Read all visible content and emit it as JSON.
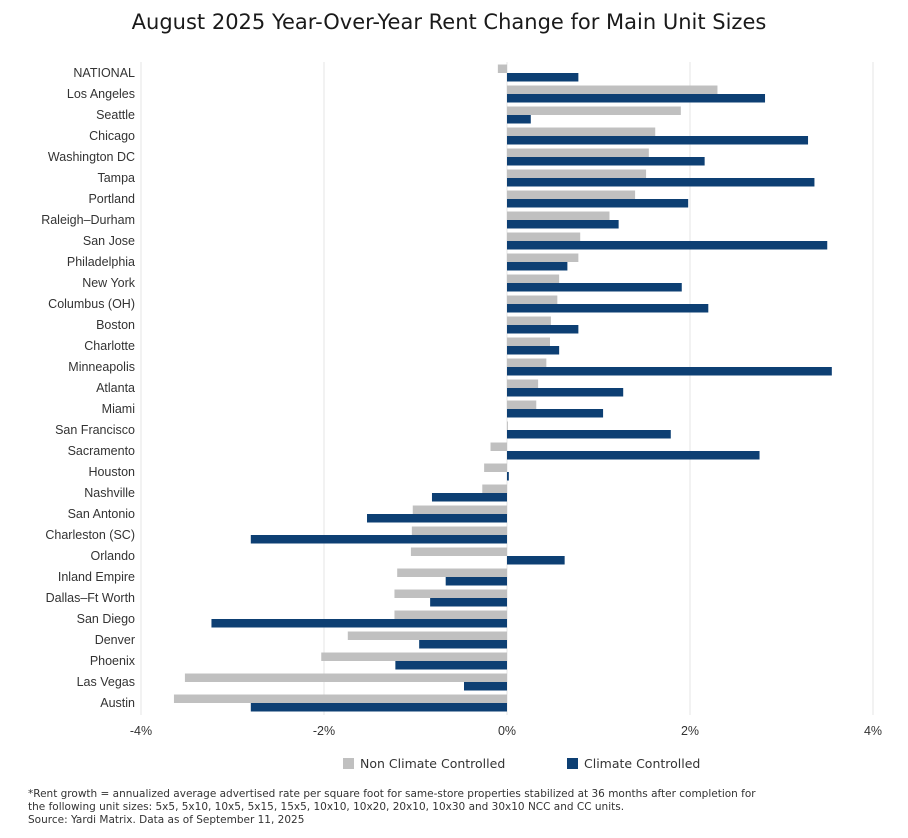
{
  "chart_data": {
    "type": "bar",
    "orientation": "horizontal",
    "title": "August 2025 Year-Over-Year Rent Change for Main Unit Sizes",
    "categories": [
      "NATIONAL",
      "Los Angeles",
      "Seattle",
      "Chicago",
      "Washington DC",
      "Tampa",
      "Portland",
      "Raleigh–Durham",
      "San Jose",
      "Philadelphia",
      "New York",
      "Columbus (OH)",
      "Boston",
      "Charlotte",
      "Minneapolis",
      "Atlanta",
      "Miami",
      "San Francisco",
      "Sacramento",
      "Houston",
      "Nashville",
      "San Antonio",
      "Charleston (SC)",
      "Orlando",
      "Inland Empire",
      "Dallas–Ft Worth",
      "San Diego",
      "Denver",
      "Phoenix",
      "Las Vegas",
      "Austin"
    ],
    "series": [
      {
        "name": "Non Climate Controlled",
        "color": "#c0c0c0",
        "values": [
          -0.1,
          2.3,
          1.9,
          1.62,
          1.55,
          1.52,
          1.4,
          1.12,
          0.8,
          0.78,
          0.57,
          0.55,
          0.48,
          0.47,
          0.43,
          0.34,
          0.32,
          0.01,
          -0.18,
          -0.25,
          -0.27,
          -1.03,
          -1.04,
          -1.05,
          -1.2,
          -1.23,
          -1.23,
          -1.74,
          -2.03,
          -3.52,
          -3.64
        ]
      },
      {
        "name": "Climate Controlled",
        "color": "#0d3f73",
        "values": [
          0.78,
          2.82,
          0.26,
          3.29,
          2.16,
          3.36,
          1.98,
          1.22,
          3.5,
          0.66,
          1.91,
          2.2,
          0.78,
          0.57,
          3.55,
          1.27,
          1.05,
          1.79,
          2.76,
          0.02,
          -0.82,
          -1.53,
          -2.8,
          0.63,
          -0.67,
          -0.84,
          -3.23,
          -0.96,
          -1.22,
          -0.47,
          -2.8
        ]
      }
    ],
    "xlabel": "",
    "ylabel": "",
    "xlim": [
      -4,
      4
    ],
    "xticks": [
      "-4%",
      "-2%",
      "0%",
      "2%",
      "4%"
    ],
    "xtick_values": [
      -4,
      -2,
      0,
      2,
      4
    ],
    "grid": true,
    "legend_position": "bottom"
  },
  "footnote": {
    "line1": "*Rent growth = annualized average advertised rate per square foot for same-store properties stabilized at 36 months after completion for",
    "line2": "the following unit sizes: 5x5, 5x10, 10x5, 5x15, 15x5, 10x10, 10x20, 20x10, 10x30 and 30x10 NCC and CC units.",
    "line3": "Source: Yardi Matrix. Data as of September 11, 2025"
  }
}
